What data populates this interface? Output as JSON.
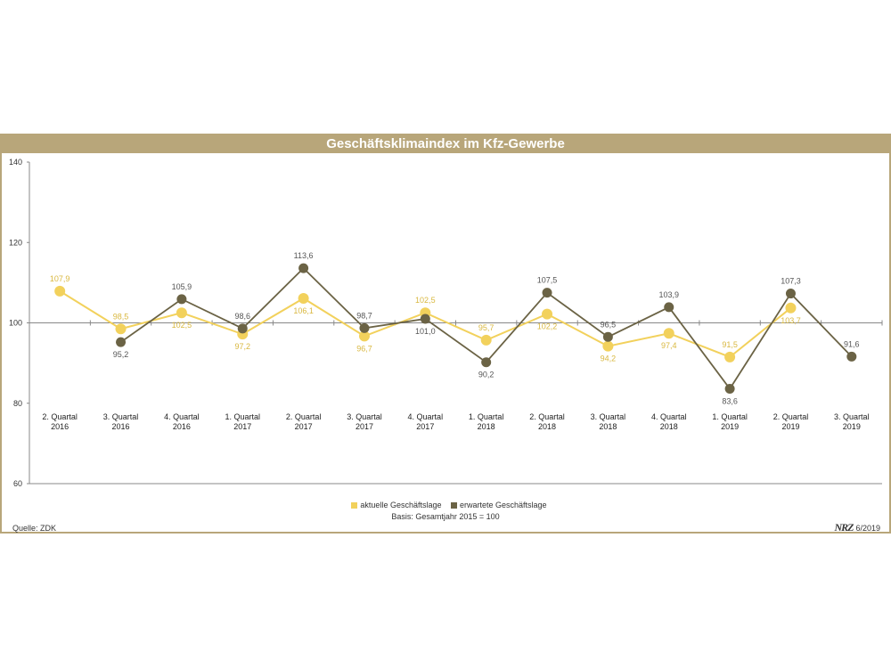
{
  "chart_data": {
    "type": "line",
    "title": "Geschäftsklimaindex im Kfz-Gewerbe",
    "categories": [
      [
        "2. Quartal",
        "2016"
      ],
      [
        "3. Quartal",
        "2016"
      ],
      [
        "4. Quartal",
        "2016"
      ],
      [
        "1. Quartal",
        "2017"
      ],
      [
        "2. Quartal",
        "2017"
      ],
      [
        "3. Quartal",
        "2017"
      ],
      [
        "4. Quartal",
        "2017"
      ],
      [
        "1. Quartal",
        "2018"
      ],
      [
        "2. Quartal",
        "2018"
      ],
      [
        "3. Quartal",
        "2018"
      ],
      [
        "4. Quartal",
        "2018"
      ],
      [
        "1. Quartal",
        "2019"
      ],
      [
        "2. Quartal",
        "2019"
      ],
      [
        "3. Quartal",
        "2019"
      ]
    ],
    "series": [
      {
        "name": "aktuelle Geschäftslage",
        "color": "#f2d15c",
        "values": [
          107.9,
          98.5,
          102.5,
          97.2,
          106.1,
          96.7,
          102.5,
          95.7,
          102.2,
          94.2,
          97.4,
          91.5,
          103.7,
          null
        ],
        "labels": [
          "107,9",
          "98,5",
          "102,5",
          "97,2",
          "106,1",
          "96,7",
          "102,5",
          "95,7",
          "102,2",
          "94,2",
          "97,4",
          "91,5",
          "103,7",
          null
        ]
      },
      {
        "name": "erwartete Geschäftslage",
        "color": "#6b6345",
        "values": [
          null,
          95.2,
          105.9,
          98.6,
          113.6,
          98.7,
          101.0,
          90.2,
          107.5,
          96.5,
          103.9,
          83.6,
          107.3,
          91.6
        ],
        "labels": [
          null,
          "95,2",
          "105,9",
          "98,6",
          "113,6",
          "98,7",
          "101,0",
          "90,2",
          "107,5",
          "96,5",
          "103,9",
          "83,6",
          "107,3",
          "91,6"
        ]
      }
    ],
    "yticks": [
      "140",
      "120",
      "100",
      "80",
      "60"
    ],
    "ylim": [
      60,
      140
    ],
    "baseline": 100,
    "basis": "Basis: Gesamtjahr 2015 = 100",
    "source": "Quelle: ZDK",
    "brand": "NRZ",
    "date": "6/2019"
  }
}
